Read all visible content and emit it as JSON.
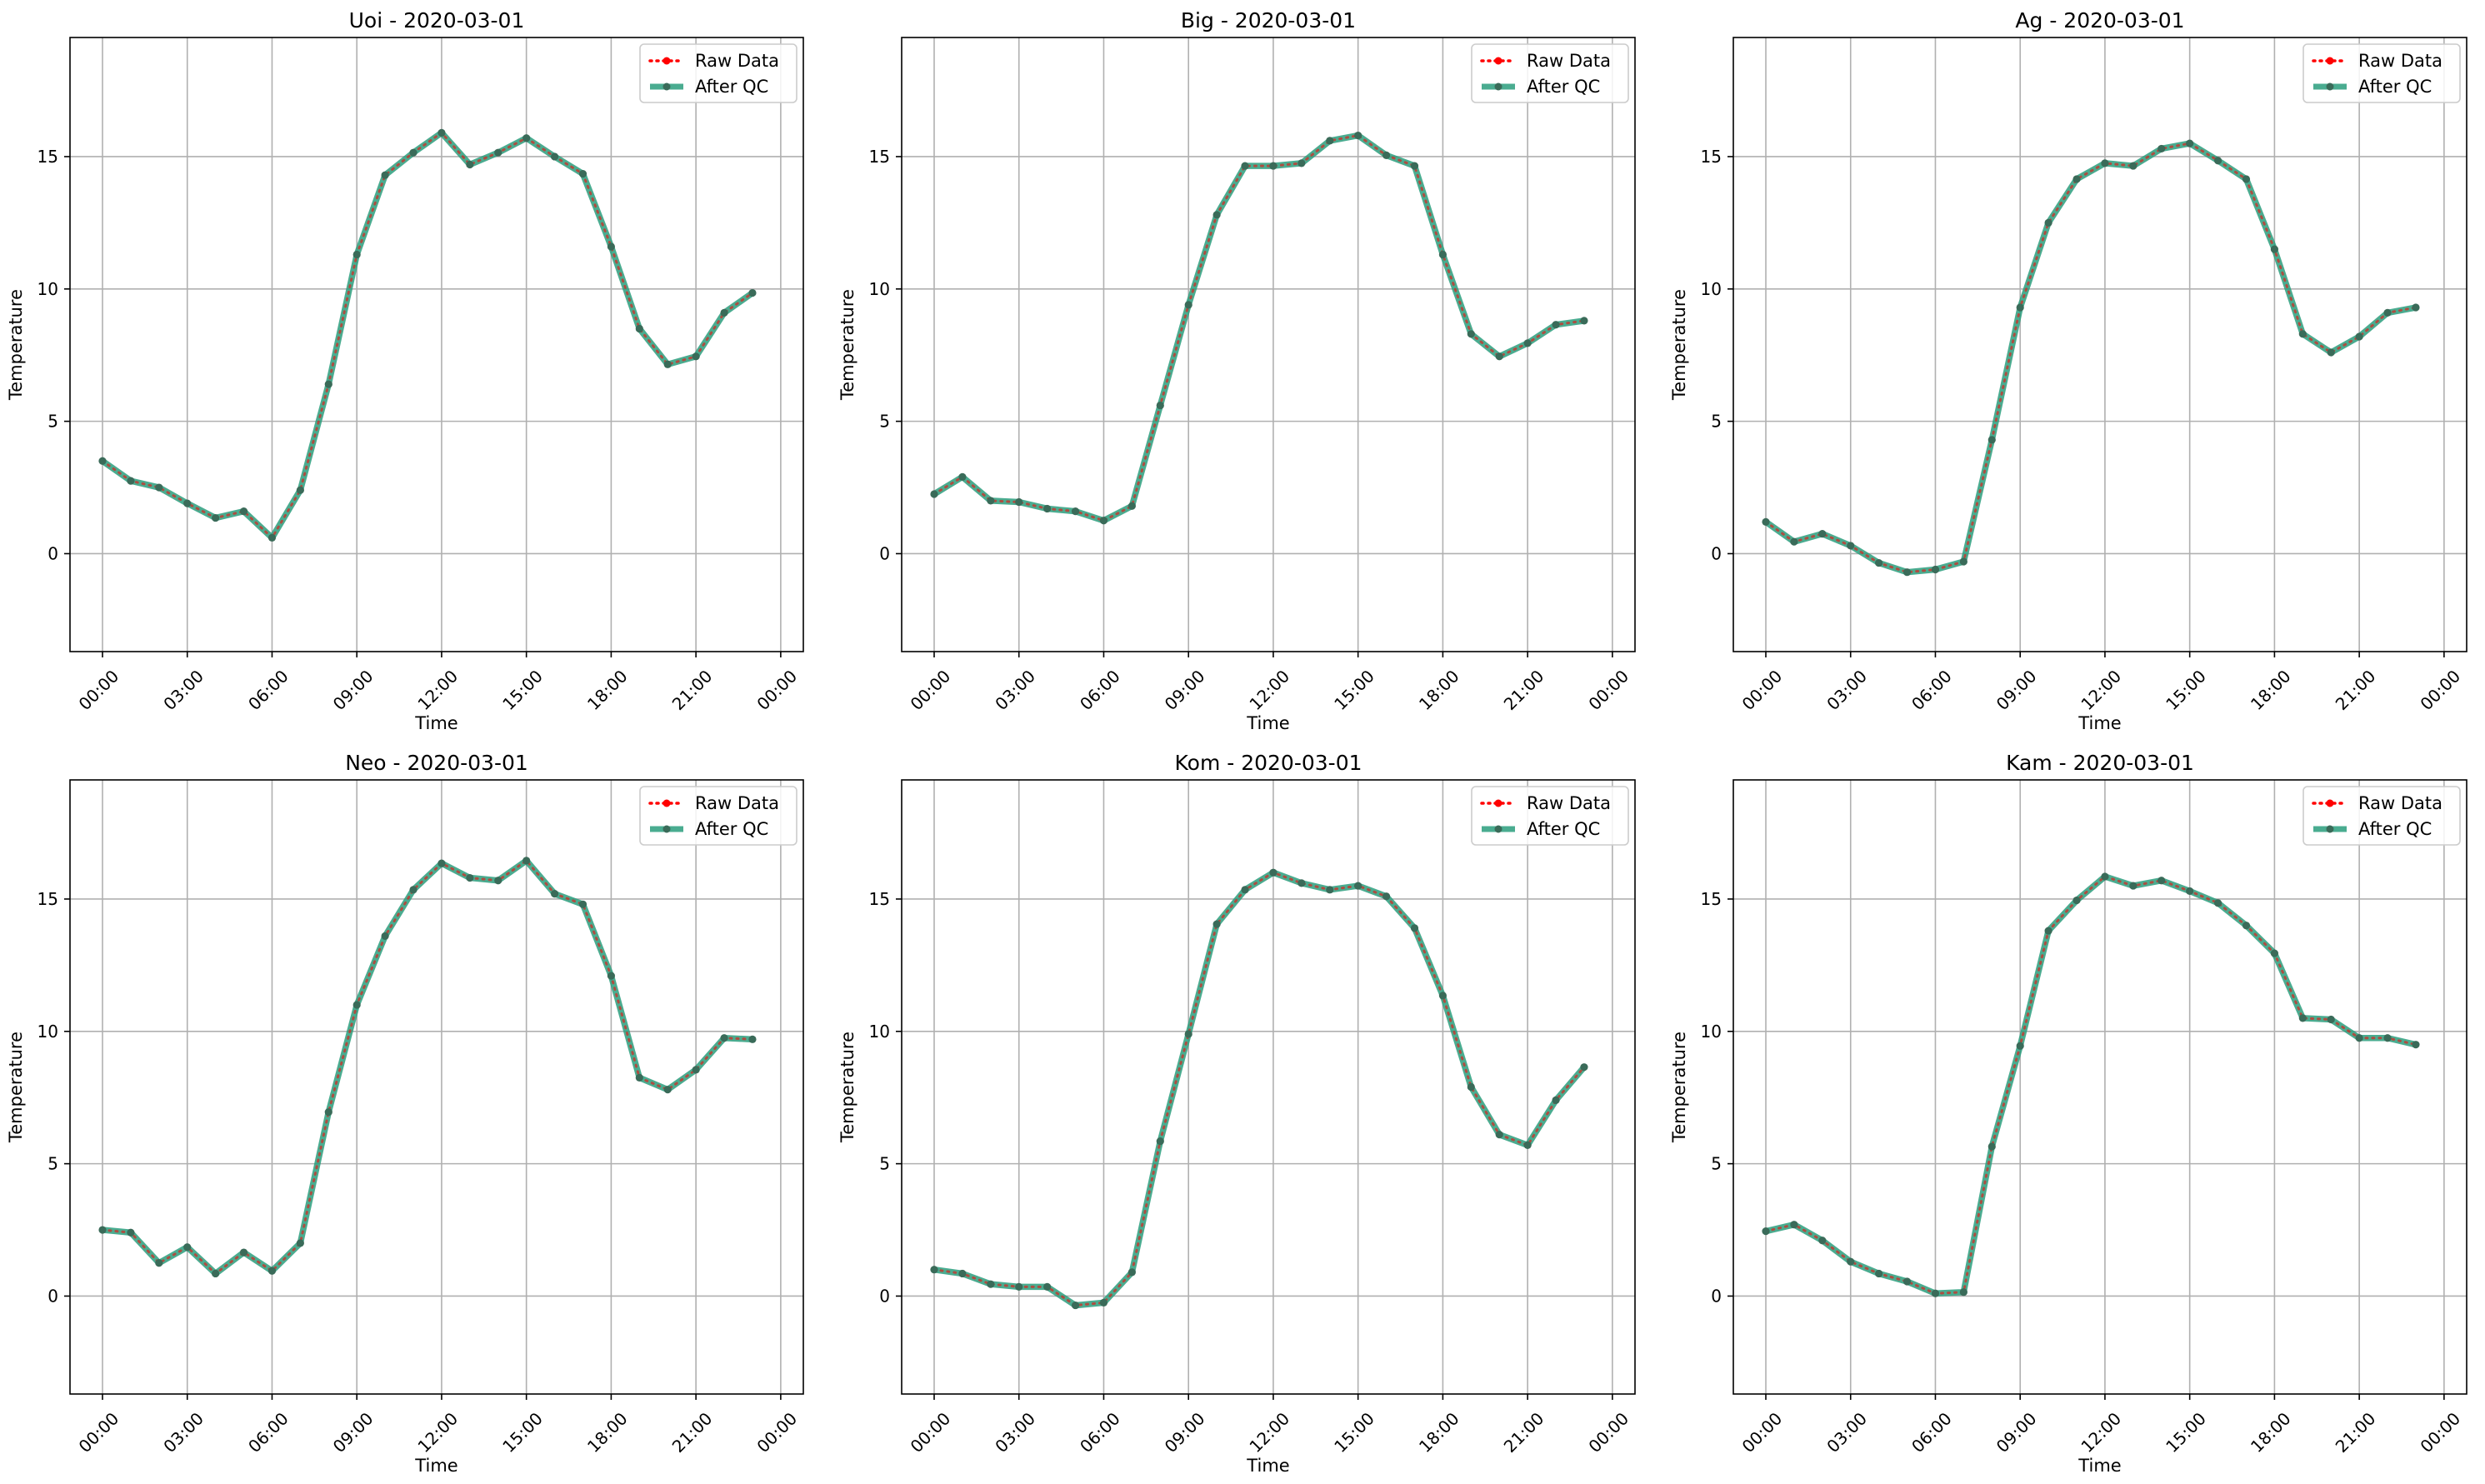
{
  "colors": {
    "raw": "#ff0000",
    "qc": "#2a9d7c",
    "marker": "#3a6b59",
    "grid": "#b0b0b0",
    "legend_border": "#cccccc"
  },
  "chart_data": [
    {
      "type": "line",
      "title": "Uoi - 2020-03-01",
      "xlabel": "Time",
      "ylabel": "Temperature",
      "xticks": [
        "00:00",
        "03:00",
        "06:00",
        "09:00",
        "12:00",
        "15:00",
        "18:00",
        "21:00",
        "00:00"
      ],
      "ylim": [
        -3.7,
        19.5
      ],
      "yticks": [
        0,
        5,
        10,
        15
      ],
      "grid": true,
      "legend": "top-right",
      "x_hours": [
        0,
        1,
        2,
        3,
        4,
        5,
        6,
        7,
        8,
        9,
        10,
        11,
        12,
        13,
        14,
        15,
        16,
        17,
        18,
        19,
        20,
        21,
        22,
        23
      ],
      "series": [
        {
          "name": "Raw Data",
          "values": [
            3.5,
            2.75,
            2.5,
            1.9,
            1.35,
            1.6,
            0.6,
            2.4,
            6.4,
            11.3,
            14.3,
            15.15,
            15.9,
            14.7,
            15.15,
            15.7,
            15.0,
            14.35,
            11.6,
            8.5,
            7.15,
            7.45,
            9.1,
            9.85
          ]
        },
        {
          "name": "After QC",
          "values": [
            3.5,
            2.75,
            2.5,
            1.9,
            1.35,
            1.6,
            0.6,
            2.4,
            6.4,
            11.3,
            14.3,
            15.15,
            15.9,
            14.7,
            15.15,
            15.7,
            15.0,
            14.35,
            11.6,
            8.5,
            7.15,
            7.45,
            9.1,
            9.85
          ]
        }
      ]
    },
    {
      "type": "line",
      "title": "Big - 2020-03-01",
      "xlabel": "Time",
      "ylabel": "Temperature",
      "xticks": [
        "00:00",
        "03:00",
        "06:00",
        "09:00",
        "12:00",
        "15:00",
        "18:00",
        "21:00",
        "00:00"
      ],
      "ylim": [
        -3.7,
        19.5
      ],
      "yticks": [
        0,
        5,
        10,
        15
      ],
      "grid": true,
      "legend": "top-right",
      "x_hours": [
        0,
        1,
        2,
        3,
        4,
        5,
        6,
        7,
        8,
        9,
        10,
        11,
        12,
        13,
        14,
        15,
        16,
        17,
        18,
        19,
        20,
        21,
        22,
        23
      ],
      "series": [
        {
          "name": "Raw Data",
          "values": [
            2.25,
            2.9,
            2.0,
            1.95,
            1.7,
            1.6,
            1.25,
            1.8,
            5.6,
            9.4,
            12.8,
            14.65,
            14.65,
            14.75,
            15.6,
            15.8,
            15.05,
            14.65,
            11.3,
            8.3,
            7.45,
            7.95,
            8.65,
            8.8
          ]
        },
        {
          "name": "After QC",
          "values": [
            2.25,
            2.9,
            2.0,
            1.95,
            1.7,
            1.6,
            1.25,
            1.8,
            5.6,
            9.4,
            12.8,
            14.65,
            14.65,
            14.75,
            15.6,
            15.8,
            15.05,
            14.65,
            11.3,
            8.3,
            7.45,
            7.95,
            8.65,
            8.8
          ]
        }
      ]
    },
    {
      "type": "line",
      "title": "Ag - 2020-03-01",
      "xlabel": "Time",
      "ylabel": "Temperature",
      "xticks": [
        "00:00",
        "03:00",
        "06:00",
        "09:00",
        "12:00",
        "15:00",
        "18:00",
        "21:00",
        "00:00"
      ],
      "ylim": [
        -3.7,
        19.5
      ],
      "yticks": [
        0,
        5,
        10,
        15
      ],
      "grid": true,
      "legend": "top-right",
      "x_hours": [
        0,
        1,
        2,
        3,
        4,
        5,
        6,
        7,
        8,
        9,
        10,
        11,
        12,
        13,
        14,
        15,
        16,
        17,
        18,
        19,
        20,
        21,
        22,
        23
      ],
      "series": [
        {
          "name": "Raw Data",
          "values": [
            1.2,
            0.45,
            0.75,
            0.3,
            -0.35,
            -0.7,
            -0.6,
            -0.3,
            4.3,
            9.3,
            12.5,
            14.15,
            14.75,
            14.65,
            15.3,
            15.5,
            14.85,
            14.15,
            11.5,
            8.3,
            7.6,
            8.2,
            9.1,
            9.3
          ]
        },
        {
          "name": "After QC",
          "values": [
            1.2,
            0.45,
            0.75,
            0.3,
            -0.35,
            -0.7,
            -0.6,
            -0.3,
            4.3,
            9.3,
            12.5,
            14.15,
            14.75,
            14.65,
            15.3,
            15.5,
            14.85,
            14.15,
            11.5,
            8.3,
            7.6,
            8.2,
            9.1,
            9.3
          ]
        }
      ]
    },
    {
      "type": "line",
      "title": "Neo - 2020-03-01",
      "xlabel": "Time",
      "ylabel": "Temperature",
      "xticks": [
        "00:00",
        "03:00",
        "06:00",
        "09:00",
        "12:00",
        "15:00",
        "18:00",
        "21:00",
        "00:00"
      ],
      "ylim": [
        -3.7,
        19.5
      ],
      "yticks": [
        0,
        5,
        10,
        15
      ],
      "grid": true,
      "legend": "top-right",
      "x_hours": [
        0,
        1,
        2,
        3,
        4,
        5,
        6,
        7,
        8,
        9,
        10,
        11,
        12,
        13,
        14,
        15,
        16,
        17,
        18,
        19,
        20,
        21,
        22,
        23
      ],
      "series": [
        {
          "name": "Raw Data",
          "values": [
            2.5,
            2.4,
            1.25,
            1.85,
            0.85,
            1.65,
            0.95,
            2.0,
            6.95,
            11.0,
            13.6,
            15.35,
            16.35,
            15.8,
            15.7,
            16.45,
            15.2,
            14.8,
            12.1,
            8.25,
            7.8,
            8.55,
            9.75,
            9.7
          ]
        },
        {
          "name": "After QC",
          "values": [
            2.5,
            2.4,
            1.25,
            1.85,
            0.85,
            1.65,
            0.95,
            2.0,
            6.95,
            11.0,
            13.6,
            15.35,
            16.35,
            15.8,
            15.7,
            16.45,
            15.2,
            14.8,
            12.1,
            8.25,
            7.8,
            8.55,
            9.75,
            9.7
          ]
        }
      ]
    },
    {
      "type": "line",
      "title": "Kom - 2020-03-01",
      "xlabel": "Time",
      "ylabel": "Temperature",
      "xticks": [
        "00:00",
        "03:00",
        "06:00",
        "09:00",
        "12:00",
        "15:00",
        "18:00",
        "21:00",
        "00:00"
      ],
      "ylim": [
        -3.7,
        19.5
      ],
      "yticks": [
        0,
        5,
        10,
        15
      ],
      "grid": true,
      "legend": "top-right",
      "x_hours": [
        0,
        1,
        2,
        3,
        4,
        5,
        6,
        7,
        8,
        9,
        10,
        11,
        12,
        13,
        14,
        15,
        16,
        17,
        18,
        19,
        20,
        21,
        22,
        23
      ],
      "series": [
        {
          "name": "Raw Data",
          "values": [
            1.0,
            0.85,
            0.45,
            0.35,
            0.35,
            -0.35,
            -0.25,
            0.9,
            5.85,
            9.9,
            14.05,
            15.35,
            16.0,
            15.6,
            15.35,
            15.5,
            15.1,
            13.9,
            11.35,
            7.9,
            6.1,
            5.7,
            7.4,
            8.65
          ]
        },
        {
          "name": "After QC",
          "values": [
            1.0,
            0.85,
            0.45,
            0.35,
            0.35,
            -0.35,
            -0.25,
            0.9,
            5.85,
            9.9,
            14.05,
            15.35,
            16.0,
            15.6,
            15.35,
            15.5,
            15.1,
            13.9,
            11.35,
            7.9,
            6.1,
            5.7,
            7.4,
            8.65
          ]
        }
      ]
    },
    {
      "type": "line",
      "title": "Kam - 2020-03-01",
      "xlabel": "Time",
      "ylabel": "Temperature",
      "xticks": [
        "00:00",
        "03:00",
        "06:00",
        "09:00",
        "12:00",
        "15:00",
        "18:00",
        "21:00",
        "00:00"
      ],
      "ylim": [
        -3.7,
        19.5
      ],
      "yticks": [
        0,
        5,
        10,
        15
      ],
      "grid": true,
      "legend": "top-right",
      "x_hours": [
        0,
        1,
        2,
        3,
        4,
        5,
        6,
        7,
        8,
        9,
        10,
        11,
        12,
        13,
        14,
        15,
        16,
        17,
        18,
        19,
        20,
        21,
        22,
        23
      ],
      "series": [
        {
          "name": "Raw Data",
          "values": [
            2.45,
            2.7,
            2.1,
            1.3,
            0.85,
            0.55,
            0.1,
            0.15,
            5.65,
            9.45,
            13.8,
            14.95,
            15.85,
            15.5,
            15.7,
            15.3,
            14.85,
            14.0,
            12.95,
            10.5,
            10.45,
            9.75,
            9.75,
            9.5
          ]
        },
        {
          "name": "After QC",
          "values": [
            2.45,
            2.7,
            2.1,
            1.3,
            0.85,
            0.55,
            0.1,
            0.15,
            5.65,
            9.45,
            13.8,
            14.95,
            15.85,
            15.5,
            15.7,
            15.3,
            14.85,
            14.0,
            12.95,
            10.5,
            10.45,
            9.75,
            9.75,
            9.5
          ]
        }
      ]
    }
  ]
}
